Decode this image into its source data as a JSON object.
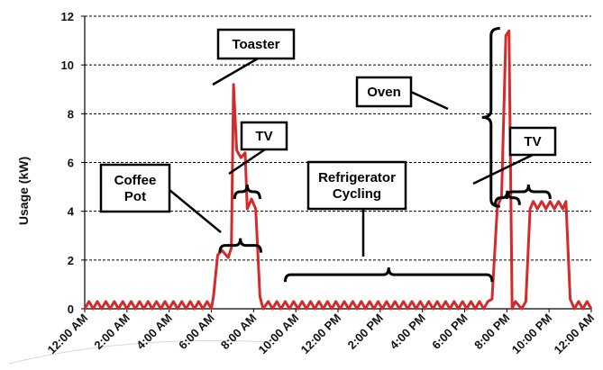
{
  "chart_data": {
    "type": "line",
    "title": "",
    "xlabel": "",
    "ylabel": "Usage (kW)",
    "ylim": [
      0,
      12
    ],
    "yticks": [
      0,
      2,
      4,
      6,
      8,
      10,
      12
    ],
    "xlim": [
      0,
      24
    ],
    "xticks": [
      {
        "hour": 0,
        "label": "12:00 AM"
      },
      {
        "hour": 2,
        "label": "2:00 AM"
      },
      {
        "hour": 4,
        "label": "4:00 AM"
      },
      {
        "hour": 6,
        "label": "6:00 AM"
      },
      {
        "hour": 8,
        "label": "8:00 AM"
      },
      {
        "hour": 10,
        "label": "10:00 AM"
      },
      {
        "hour": 12,
        "label": "12:00 PM"
      },
      {
        "hour": 14,
        "label": "2:00 PM"
      },
      {
        "hour": 16,
        "label": "4:00 PM"
      },
      {
        "hour": 18,
        "label": "6:00 PM"
      },
      {
        "hour": 20,
        "label": "8:00 PM"
      },
      {
        "hour": 22,
        "label": "10:00 PM"
      },
      {
        "hour": 24,
        "label": "12:00 AM"
      }
    ],
    "grid": "horizontal-dashed",
    "series_color": "#d42a2a",
    "series": [
      {
        "name": "",
        "x": [
          0,
          0.2,
          0.4,
          0.6,
          0.8,
          1.0,
          1.2,
          1.4,
          1.6,
          1.8,
          2.0,
          2.2,
          2.4,
          2.6,
          2.8,
          3.0,
          3.2,
          3.4,
          3.6,
          3.8,
          4.0,
          4.2,
          4.4,
          4.6,
          4.8,
          5.0,
          5.2,
          5.4,
          5.6,
          5.8,
          6.0,
          6.1,
          6.3,
          6.5,
          6.8,
          6.95,
          7.05,
          7.2,
          7.4,
          7.6,
          7.7,
          7.9,
          8.1,
          8.3,
          8.45,
          8.7,
          8.9,
          9.1,
          9.3,
          9.5,
          9.7,
          9.9,
          10.1,
          10.3,
          10.5,
          10.7,
          10.9,
          11.1,
          11.3,
          11.5,
          11.7,
          11.9,
          12.1,
          12.3,
          12.5,
          12.7,
          12.9,
          13.1,
          13.3,
          13.5,
          13.7,
          13.9,
          14.1,
          14.3,
          14.5,
          14.7,
          14.9,
          15.1,
          15.3,
          15.5,
          15.7,
          15.9,
          16.1,
          16.3,
          16.5,
          16.7,
          16.9,
          17.1,
          17.3,
          17.5,
          17.7,
          17.9,
          18.1,
          18.3,
          18.5,
          18.7,
          18.9,
          19.1,
          19.3,
          19.55,
          19.75,
          19.95,
          20.1,
          20.25,
          20.4,
          20.7,
          20.9,
          21.1,
          21.25,
          21.45,
          21.65,
          21.85,
          22.05,
          22.25,
          22.45,
          22.65,
          22.8,
          23.0,
          23.2,
          23.4,
          23.6,
          23.8,
          24.0
        ],
        "y": [
          0,
          0.3,
          0,
          0.3,
          0,
          0.3,
          0,
          0.3,
          0,
          0.3,
          0,
          0.3,
          0,
          0.3,
          0,
          0.3,
          0,
          0.3,
          0,
          0.3,
          0,
          0.3,
          0,
          0.3,
          0,
          0.3,
          0,
          0.3,
          0,
          0.3,
          0,
          0.5,
          2.2,
          2.4,
          2.1,
          2.5,
          9.2,
          6.5,
          6.2,
          6.4,
          4.1,
          4.5,
          4.1,
          0.5,
          0,
          0.3,
          0,
          0.3,
          0,
          0.3,
          0,
          0.3,
          0,
          0.3,
          0,
          0.3,
          0,
          0.3,
          0,
          0.3,
          0,
          0.3,
          0,
          0.3,
          0,
          0.3,
          0,
          0.3,
          0,
          0.3,
          0,
          0.3,
          0,
          0.3,
          0,
          0.3,
          0,
          0.3,
          0,
          0.3,
          0,
          0.3,
          0,
          0.3,
          0,
          0.3,
          0,
          0.3,
          0,
          0.3,
          0,
          0.3,
          0,
          0.3,
          0,
          0.3,
          0,
          0.3,
          0.4,
          4.2,
          4.6,
          11.2,
          11.4,
          0,
          0.3,
          0,
          0.3,
          4.1,
          4.4,
          4.1,
          4.4,
          4.1,
          4.4,
          4.1,
          4.4,
          4.1,
          4.4,
          0.4,
          0,
          0.3,
          0,
          0.3,
          0
        ]
      }
    ],
    "annotations": [
      {
        "id": "toaster",
        "lines": [
          "Toaster"
        ],
        "bracket": "none",
        "target_hour": 7.05,
        "target_value": 9.2
      },
      {
        "id": "tv1",
        "lines": [
          "TV"
        ],
        "bracket": "horizontal",
        "span": [
          7.1,
          8.3
        ],
        "level": 4.8
      },
      {
        "id": "coffee",
        "lines": [
          "Coffee",
          "Pot"
        ],
        "bracket": "horizontal",
        "span": [
          6.4,
          8.35
        ],
        "level": 2.6
      },
      {
        "id": "fridge",
        "lines": [
          "Refrigerator",
          "Cycling"
        ],
        "bracket": "horizontal",
        "span": [
          9.5,
          19.3
        ],
        "level": 1.4
      },
      {
        "id": "oven",
        "lines": [
          "Oven"
        ],
        "bracket": "vertical",
        "span": [
          4.2,
          11.5
        ],
        "at_hour": 19.25
      },
      {
        "id": "tv2",
        "lines": [
          "TV"
        ],
        "bracket": "horizontal",
        "span": [
          20.0,
          22.05
        ],
        "level": 4.8
      },
      {
        "id": "tv2b",
        "lines": [],
        "bracket": "horizontal",
        "span": [
          19.45,
          20.6
        ],
        "level": 4.55
      }
    ]
  }
}
